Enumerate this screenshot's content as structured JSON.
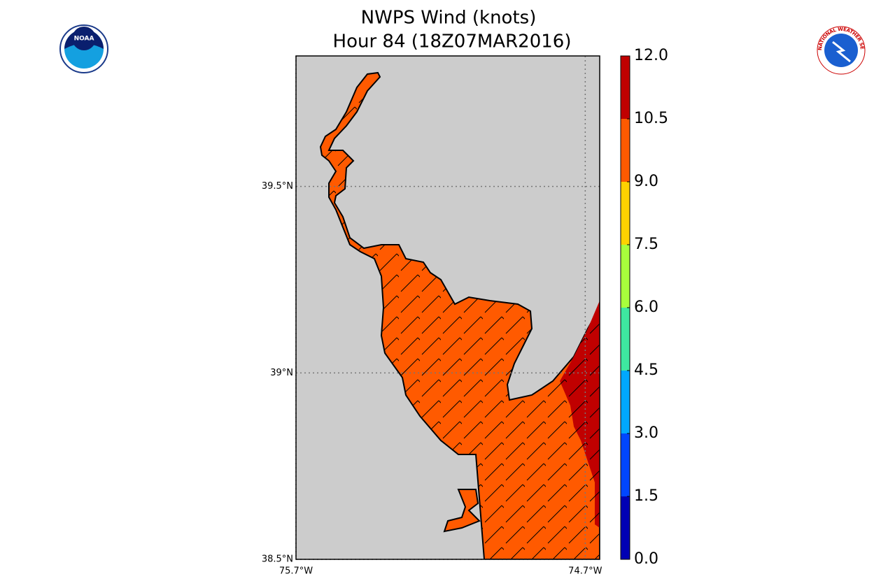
{
  "chart_data": {
    "type": "map",
    "title": "NWPS Wind (knots)",
    "subtitle": "Hour 84 (18Z07MAR2016)",
    "xlim": [
      -75.7,
      -74.65
    ],
    "ylim": [
      38.5,
      39.85
    ],
    "xticks": [
      {
        "value": -75.7,
        "label": "75.7°W"
      },
      {
        "value": -74.7,
        "label": "74.7°W"
      }
    ],
    "yticks": [
      {
        "value": 38.5,
        "label": "38.5°N"
      },
      {
        "value": 39,
        "label": "39°N"
      },
      {
        "value": 39.5,
        "label": "39.5°N"
      }
    ],
    "grid": true,
    "land_color": "#cccccc",
    "colorbar": {
      "ticks": [
        {
          "value": 0,
          "label": "0.0"
        },
        {
          "value": 1.5,
          "label": "1.5"
        },
        {
          "value": 3,
          "label": "3.0"
        },
        {
          "value": 4.5,
          "label": "4.5"
        },
        {
          "value": 6,
          "label": "6.0"
        },
        {
          "value": 7.5,
          "label": "7.5"
        },
        {
          "value": 9,
          "label": "9.0"
        },
        {
          "value": 10.5,
          "label": "10.5"
        },
        {
          "value": 12,
          "label": "12.0"
        }
      ],
      "colors": [
        "#0000b4",
        "#0046ff",
        "#00a8ff",
        "#3ee8a0",
        "#a8ff3c",
        "#ffd200",
        "#ff5a00",
        "#c00000"
      ]
    }
  },
  "logos": {
    "left": "NOAA",
    "right": "NATIONAL WEATHER SERVICE"
  }
}
